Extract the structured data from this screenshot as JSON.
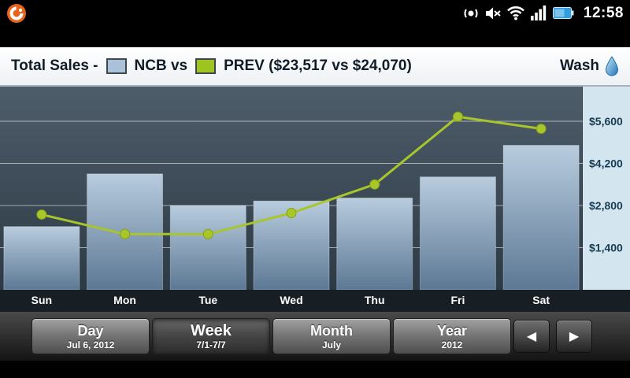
{
  "status_bar": {
    "time": "12:58",
    "icons": [
      "app-logo-icon",
      "volume-icon",
      "mute-icon",
      "wifi-icon",
      "signal-icon",
      "battery-icon"
    ]
  },
  "header": {
    "title": "Total Sales -",
    "legend": [
      {
        "label": "NCB vs",
        "color": "#a9c2d9"
      },
      {
        "label": "PREV ($23,517 vs $24,070)",
        "color": "#9dc41f"
      }
    ],
    "department": "Wash",
    "department_icon": "water-drop-icon"
  },
  "chart_data": {
    "type": "bar+line",
    "categories": [
      "Sun",
      "Mon",
      "Tue",
      "Wed",
      "Thu",
      "Fri",
      "Sat"
    ],
    "series": [
      {
        "name": "NCB",
        "type": "bar",
        "color": "#8fa9c4",
        "values": [
          2100,
          3850,
          2800,
          2950,
          3050,
          3750,
          4800
        ]
      },
      {
        "name": "PREV",
        "type": "line",
        "color": "#a8c62b",
        "values": [
          2500,
          1850,
          1850,
          2550,
          3500,
          5750,
          5350
        ]
      }
    ],
    "y_ticks": [
      1400,
      2800,
      4200,
      5600
    ],
    "y_tick_labels": [
      "$1,400",
      "$2,800",
      "$4,200",
      "$5,600"
    ],
    "ylim": [
      0,
      6750
    ],
    "totals": {
      "ncb_total": "$23,517",
      "prev_total": "$24,070"
    },
    "legend_position": "top",
    "grid": true
  },
  "controls": {
    "buttons": [
      {
        "label": "Day",
        "sublabel": "Jul 6, 2012",
        "selected": false
      },
      {
        "label": "Week",
        "sublabel": "7/1-7/7",
        "selected": true
      },
      {
        "label": "Month",
        "sublabel": "July",
        "selected": false
      },
      {
        "label": "Year",
        "sublabel": "2012",
        "selected": false
      }
    ],
    "prev_glyph": "◀",
    "next_glyph": "▶"
  }
}
